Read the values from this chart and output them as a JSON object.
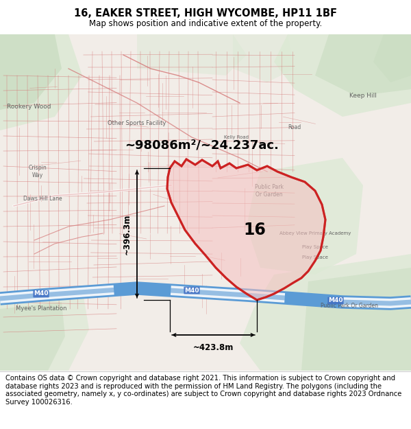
{
  "title": "16, EAKER STREET, HIGH WYCOMBE, HP11 1BF",
  "subtitle": "Map shows position and indicative extent of the property.",
  "area_label": "~98086m²/~24.237ac.",
  "property_label": "16",
  "dim_width": "~423.8m",
  "dim_height": "~396.3m",
  "footer": "Contains OS data © Crown copyright and database right 2021. This information is subject to Crown copyright and database rights 2023 and is reproduced with the permission of HM Land Registry. The polygons (including the associated geometry, namely x, y co-ordinates) are subject to Crown copyright and database rights 2023 Ordnance Survey 100026316.",
  "title_fontsize": 10.5,
  "subtitle_fontsize": 8.5,
  "footer_fontsize": 7.2,
  "map_bg": "#f2ede8",
  "green_light": "#dce9d5",
  "green_med": "#c8dcc0",
  "street_color": "#d9857a",
  "polygon_fill": "#f5c0c0",
  "polygon_edge": "#cc2222",
  "blue_road": "#5b9bd5",
  "dim_color": "#000000"
}
